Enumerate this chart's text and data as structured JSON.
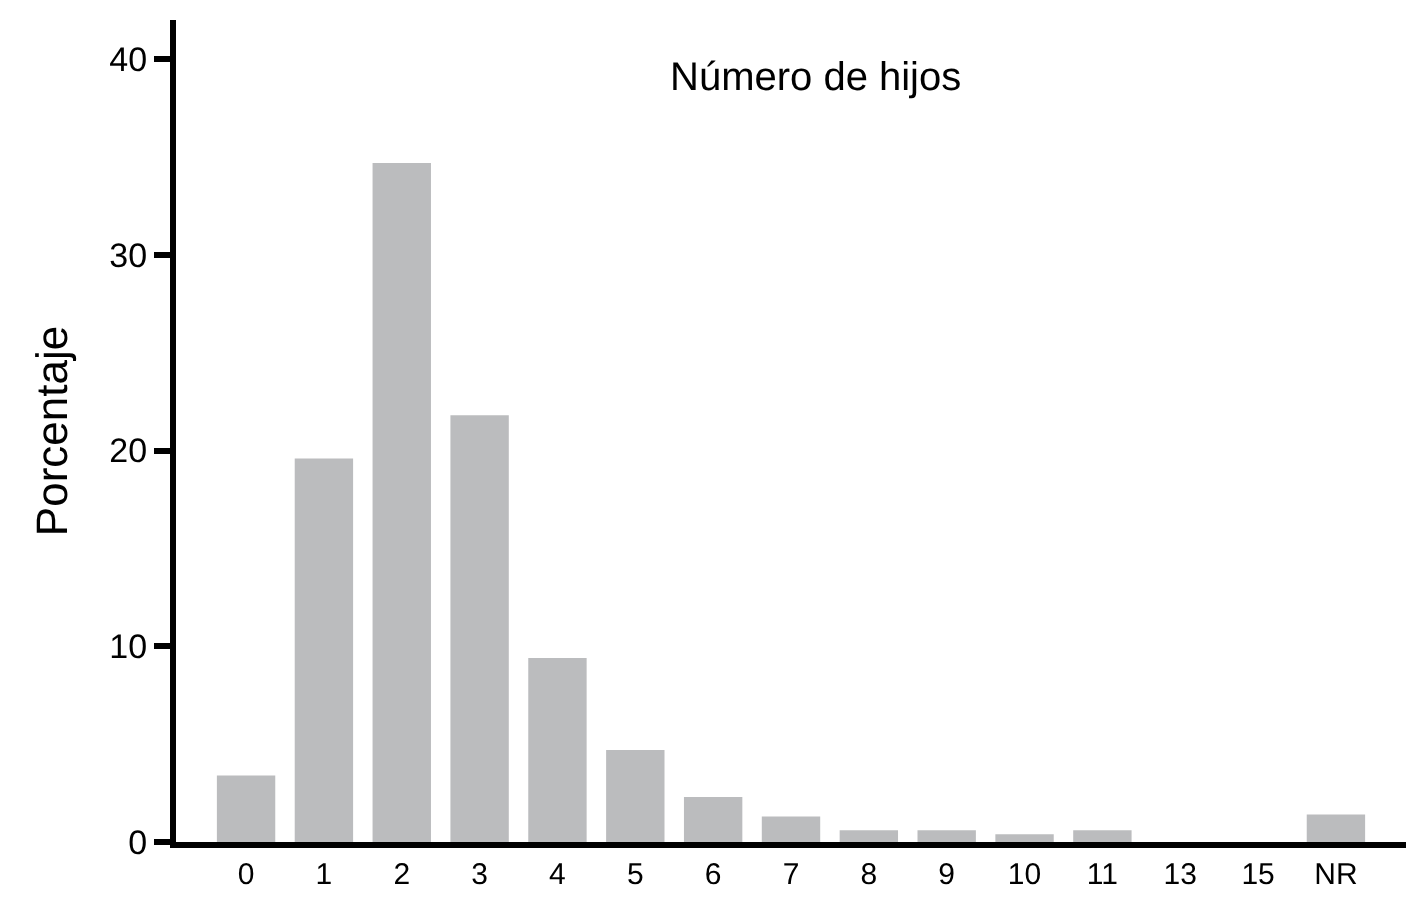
{
  "chart_data": {
    "type": "bar",
    "title": "Número de hijos",
    "ylabel": "Porcentaje",
    "categories": [
      "0",
      "1",
      "2",
      "3",
      "4",
      "5",
      "6",
      "7",
      "8",
      "9",
      "10",
      "11",
      "13",
      "15",
      "NR"
    ],
    "values": [
      3.4,
      19.6,
      34.7,
      21.8,
      9.4,
      4.7,
      2.3,
      1.3,
      0.6,
      0.6,
      0.4,
      0.6,
      0,
      0,
      1.4
    ],
    "color": "#bbbcbe",
    "ylim": [
      0,
      42
    ],
    "yticks": [
      0,
      10,
      20,
      30,
      40
    ]
  }
}
